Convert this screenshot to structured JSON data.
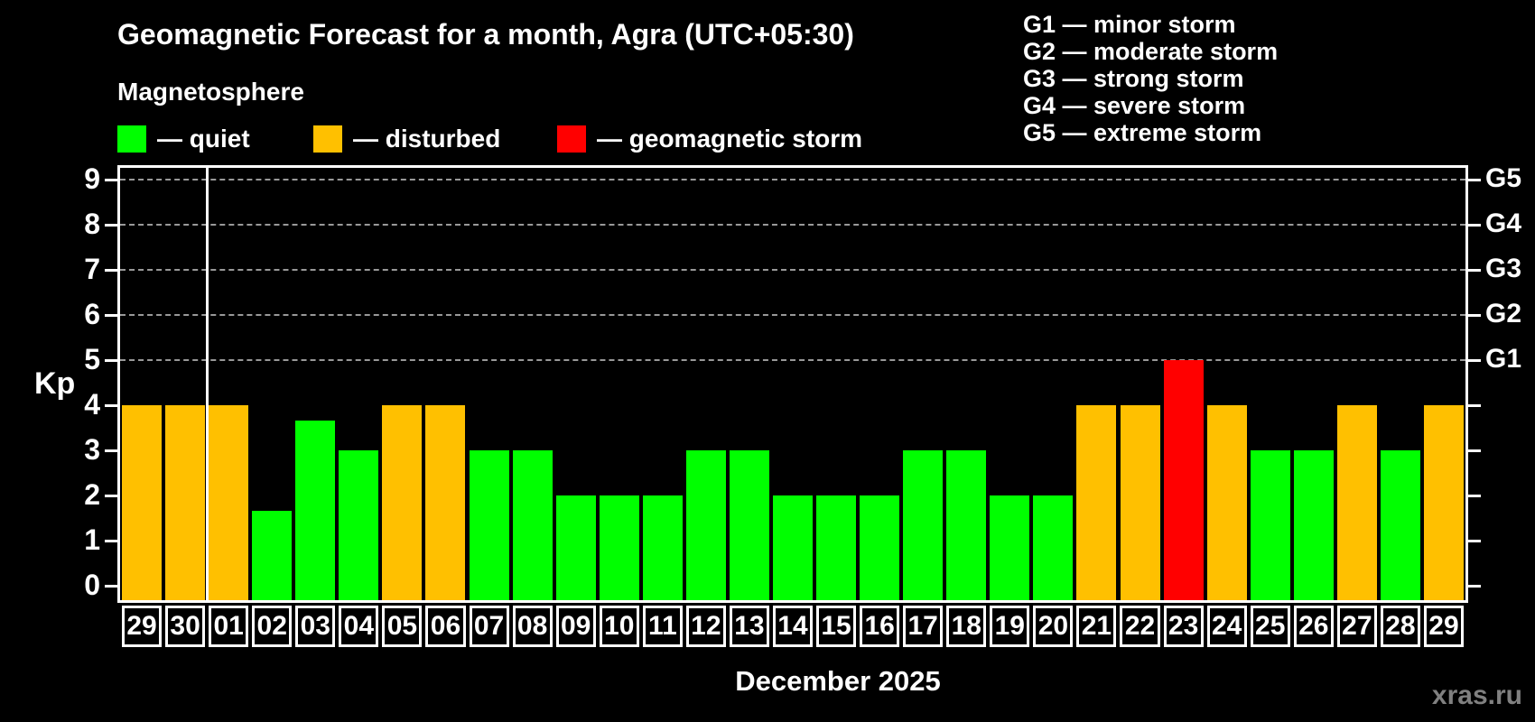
{
  "title": "Geomagnetic Forecast for a month, Agra (UTC+05:30)",
  "magnetosphere_label": "Magnetosphere",
  "legend": {
    "items": [
      {
        "key": "quiet",
        "label": "— quiet",
        "color": "#00ff00"
      },
      {
        "key": "disturbed",
        "label": "— disturbed",
        "color": "#ffc000"
      },
      {
        "key": "storm",
        "label": "— geomagnetic storm",
        "color": "#ff0000"
      }
    ]
  },
  "g_scale_legend": {
    "items": [
      "G1 — minor storm",
      "G2 — moderate storm",
      "G3 — strong storm",
      "G4 — severe storm",
      "G5 — extreme storm"
    ]
  },
  "y_axis": {
    "label": "Kp",
    "ticks": [
      0,
      1,
      2,
      3,
      4,
      5,
      6,
      7,
      8,
      9
    ],
    "gridline_levels": [
      5,
      6,
      7,
      8,
      9
    ]
  },
  "right_axis": {
    "labels": [
      {
        "kp": 5,
        "label": "G1"
      },
      {
        "kp": 6,
        "label": "G2"
      },
      {
        "kp": 7,
        "label": "G3"
      },
      {
        "kp": 8,
        "label": "G4"
      },
      {
        "kp": 9,
        "label": "G5"
      }
    ]
  },
  "x_axis": {
    "month_label": "December 2025"
  },
  "watermark": "xras.ru",
  "chart_data": {
    "type": "bar",
    "title": "Geomagnetic Forecast for a month, Agra (UTC+05:30)",
    "ylabel": "Kp",
    "ylim": [
      0,
      9
    ],
    "grid": "dashed horizontal at Kp 5-9 (G1-G5)",
    "legend_position": "top-left",
    "month_separator_after_index": 1,
    "status_colors": {
      "quiet": "#00ff00",
      "disturbed": "#ffc000",
      "storm": "#ff0000"
    },
    "bars": [
      {
        "day": "29",
        "kp": 4,
        "status": "disturbed"
      },
      {
        "day": "30",
        "kp": 4,
        "status": "disturbed"
      },
      {
        "day": "01",
        "kp": 4,
        "status": "disturbed"
      },
      {
        "day": "02",
        "kp": 1.67,
        "status": "quiet"
      },
      {
        "day": "03",
        "kp": 3.67,
        "status": "quiet"
      },
      {
        "day": "04",
        "kp": 3,
        "status": "quiet"
      },
      {
        "day": "05",
        "kp": 4,
        "status": "disturbed"
      },
      {
        "day": "06",
        "kp": 4,
        "status": "disturbed"
      },
      {
        "day": "07",
        "kp": 3,
        "status": "quiet"
      },
      {
        "day": "08",
        "kp": 3,
        "status": "quiet"
      },
      {
        "day": "09",
        "kp": 2,
        "status": "quiet"
      },
      {
        "day": "10",
        "kp": 2,
        "status": "quiet"
      },
      {
        "day": "11",
        "kp": 2,
        "status": "quiet"
      },
      {
        "day": "12",
        "kp": 3,
        "status": "quiet"
      },
      {
        "day": "13",
        "kp": 3,
        "status": "quiet"
      },
      {
        "day": "14",
        "kp": 2,
        "status": "quiet"
      },
      {
        "day": "15",
        "kp": 2,
        "status": "quiet"
      },
      {
        "day": "16",
        "kp": 2,
        "status": "quiet"
      },
      {
        "day": "17",
        "kp": 3,
        "status": "quiet"
      },
      {
        "day": "18",
        "kp": 3,
        "status": "quiet"
      },
      {
        "day": "19",
        "kp": 2,
        "status": "quiet"
      },
      {
        "day": "20",
        "kp": 2,
        "status": "quiet"
      },
      {
        "day": "21",
        "kp": 4,
        "status": "disturbed"
      },
      {
        "day": "22",
        "kp": 4,
        "status": "disturbed"
      },
      {
        "day": "23",
        "kp": 5,
        "status": "storm"
      },
      {
        "day": "24",
        "kp": 4,
        "status": "disturbed"
      },
      {
        "day": "25",
        "kp": 3,
        "status": "quiet"
      },
      {
        "day": "26",
        "kp": 3,
        "status": "quiet"
      },
      {
        "day": "27",
        "kp": 4,
        "status": "disturbed"
      },
      {
        "day": "28",
        "kp": 3,
        "status": "quiet"
      },
      {
        "day": "29",
        "kp": 4,
        "status": "disturbed"
      }
    ]
  }
}
